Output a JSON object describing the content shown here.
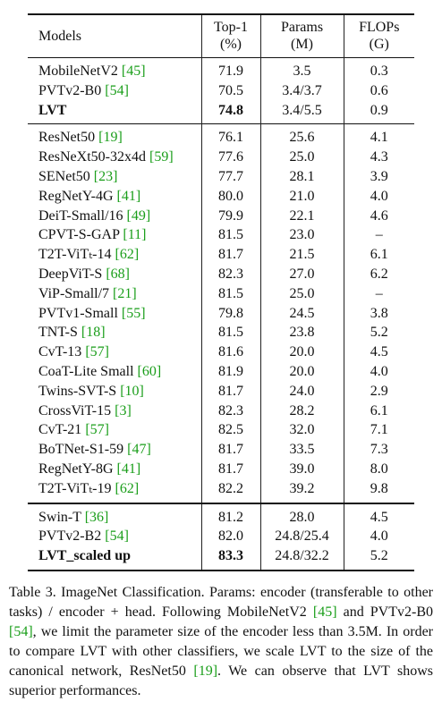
{
  "table": {
    "headers": {
      "models": "Models",
      "top1_line1": "Top-1",
      "top1_line2": "(%)",
      "params_line1": "Params",
      "params_line2": "(M)",
      "flops_line1": "FLOPs",
      "flops_line2": "(G)"
    },
    "groups": [
      [
        {
          "name": "MobileNetV2",
          "ref": "[45]",
          "top1": "71.9",
          "params": "3.5",
          "flops": "0.3"
        },
        {
          "name": "PVTv2-B0",
          "ref": "[54]",
          "top1": "70.5",
          "params": "3.4/3.7",
          "flops": "0.6"
        },
        {
          "name": "LVT",
          "ref": "",
          "top1": "74.8",
          "params": "3.4/5.5",
          "flops": "0.9",
          "bold": true
        }
      ],
      [
        {
          "name": "ResNet50",
          "ref": "[19]",
          "top1": "76.1",
          "params": "25.6",
          "flops": "4.1"
        },
        {
          "name": "ResNeXt50-32x4d",
          "ref": "[59]",
          "top1": "77.6",
          "params": "25.0",
          "flops": "4.3"
        },
        {
          "name": "SENet50",
          "ref": "[23]",
          "top1": "77.7",
          "params": "28.1",
          "flops": "3.9"
        },
        {
          "name": "RegNetY-4G",
          "ref": "[41]",
          "top1": "80.0",
          "params": "21.0",
          "flops": "4.0"
        },
        {
          "name": "DeiT-Small/16",
          "ref": "[49]",
          "top1": "79.9",
          "params": "22.1",
          "flops": "4.6"
        },
        {
          "name": "CPVT-S-GAP",
          "ref": "[11]",
          "top1": "81.5",
          "params": "23.0",
          "flops": "–"
        },
        {
          "name": "T2T-ViTₜ-14",
          "ref": "[62]",
          "top1": "81.7",
          "params": "21.5",
          "flops": "6.1"
        },
        {
          "name": "DeepViT-S",
          "ref": "[68]",
          "top1": "82.3",
          "params": "27.0",
          "flops": "6.2"
        },
        {
          "name": "ViP-Small/7",
          "ref": "[21]",
          "top1": "81.5",
          "params": "25.0",
          "flops": "–"
        },
        {
          "name": "PVTv1-Small",
          "ref": "[55]",
          "top1": "79.8",
          "params": "24.5",
          "flops": "3.8"
        },
        {
          "name": "TNT-S",
          "ref": "[18]",
          "top1": "81.5",
          "params": "23.8",
          "flops": "5.2"
        },
        {
          "name": "CvT-13",
          "ref": "[57]",
          "top1": "81.6",
          "params": "20.0",
          "flops": "4.5"
        },
        {
          "name": "CoaT-Lite Small",
          "ref": "[60]",
          "top1": "81.9",
          "params": "20.0",
          "flops": "4.0"
        },
        {
          "name": "Twins-SVT-S",
          "ref": "[10]",
          "top1": "81.7",
          "params": "24.0",
          "flops": "2.9"
        },
        {
          "name": "CrossViT-15",
          "ref": "[3]",
          "top1": "82.3",
          "params": "28.2",
          "flops": "6.1"
        },
        {
          "name": "CvT-21",
          "ref": "[57]",
          "top1": "82.5",
          "params": "32.0",
          "flops": "7.1"
        },
        {
          "name": "BoTNet-S1-59",
          "ref": "[47]",
          "top1": "81.7",
          "params": "33.5",
          "flops": "7.3"
        },
        {
          "name": "RegNetY-8G",
          "ref": "[41]",
          "top1": "81.7",
          "params": "39.0",
          "flops": "8.0"
        },
        {
          "name": "T2T-ViTₜ-19",
          "ref": "[62]",
          "top1": "82.2",
          "params": "39.2",
          "flops": "9.8"
        }
      ],
      [
        {
          "name": "Swin-T",
          "ref": "[36]",
          "top1": "81.2",
          "params": "28.0",
          "flops": "4.5"
        },
        {
          "name": "PVTv2-B2",
          "ref": "[54]",
          "top1": "82.0",
          "params": "24.8/25.4",
          "flops": "4.0"
        },
        {
          "name": "LVT_scaled up",
          "ref": "",
          "top1": "83.3",
          "params": "24.8/32.2",
          "flops": "5.2",
          "bold": true
        }
      ]
    ]
  },
  "caption": {
    "p1": "Table 3. ImageNet Classification. Params: encoder (transferable to other tasks) / encoder + head. Following MobileNetV2 ",
    "r1": "[45]",
    "p2": " and PVTv2-B0 ",
    "r2": "[54]",
    "p3": ", we limit the parameter size of the encoder less than 3.5M. In order to compare LVT with other classifiers, we scale LVT to the size of the canonical network, ResNet50 ",
    "r3": "[19]",
    "p4": ". We can observe that LVT shows superior performances."
  },
  "colors": {
    "ref": "#1a9e1a",
    "text": "#111111"
  }
}
